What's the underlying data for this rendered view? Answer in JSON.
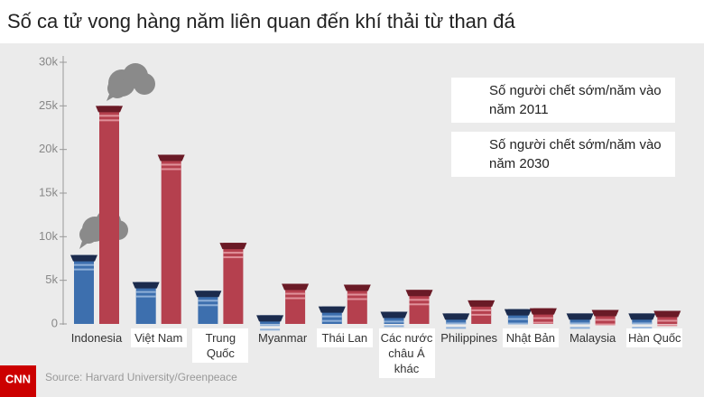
{
  "chart_data": {
    "type": "bar",
    "title": "Số ca tử vong hàng năm liên quan đến khí thải từ than đá",
    "categories": [
      "Indonesia",
      "Việt Nam",
      "Trung Quốc",
      "Myanmar",
      "Thái Lan",
      "Các nước châu Á khác",
      "Philippines",
      "Nhật Bản",
      "Malaysia",
      "Hàn Quốc"
    ],
    "series": [
      {
        "name": "Số người chết sớm/năm vào năm 2011",
        "color": "#3d6fae",
        "values": [
          7900,
          4800,
          3800,
          1000,
          2000,
          1400,
          1200,
          1700,
          1200,
          1200
        ]
      },
      {
        "name": "Số người chết sớm/năm vào năm 2030",
        "color": "#b5404e",
        "values": [
          25000,
          19400,
          9300,
          4600,
          4500,
          3900,
          2700,
          1800,
          1600,
          1500
        ]
      }
    ],
    "ylim": [
      0,
      30000
    ],
    "yticks": [
      0,
      {
        "value": 5000,
        "label": "5k"
      },
      {
        "value": 10000,
        "label": "10k"
      },
      {
        "value": 15000,
        "label": "15k"
      },
      {
        "value": 20000,
        "label": "20k"
      },
      {
        "value": 25000,
        "label": "25k"
      },
      {
        "value": 30000,
        "label": "30k"
      }
    ],
    "source": "Source: Harvard University/Greenpeace",
    "logo": "CNN"
  }
}
